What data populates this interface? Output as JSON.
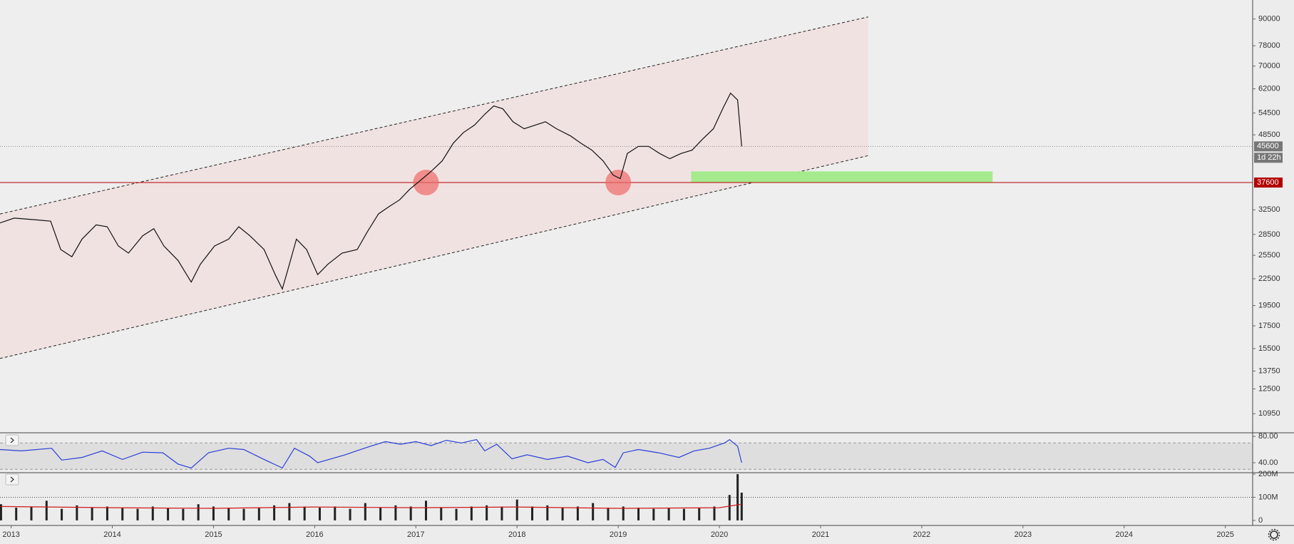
{
  "chart_data": [
    {
      "type": "line",
      "yscale": "log",
      "xlim": [
        2012.89,
        2025.27
      ],
      "xticks": [
        2013,
        2014,
        2015,
        2016,
        2017,
        2018,
        2019,
        2020,
        2021,
        2022,
        2023,
        2024,
        2025
      ],
      "ylim": [
        9890,
        99600
      ],
      "yticks": [
        90000,
        78000,
        70000,
        62000,
        54500,
        48500,
        32500,
        28500,
        25500,
        22500,
        19500,
        17500,
        15500,
        13750,
        12500,
        10950
      ],
      "x": [
        2012.89,
        2013.03,
        2013.25,
        2013.39,
        2013.49,
        2013.6,
        2013.7,
        2013.84,
        2013.95,
        2014.06,
        2014.16,
        2014.3,
        2014.41,
        2014.51,
        2014.65,
        2014.78,
        2014.87,
        2015.01,
        2015.15,
        2015.25,
        2015.36,
        2015.5,
        2015.61,
        2015.68,
        2015.75,
        2015.82,
        2015.92,
        2016.03,
        2016.13,
        2016.27,
        2016.42,
        2016.52,
        2016.63,
        2016.73,
        2016.84,
        2016.94,
        2017.05,
        2017.15,
        2017.26,
        2017.37,
        2017.47,
        2017.58,
        2017.68,
        2017.77,
        2017.86,
        2017.96,
        2018.07,
        2018.18,
        2018.28,
        2018.39,
        2018.53,
        2018.63,
        2018.74,
        2018.85,
        2018.95,
        2019.02,
        2019.09,
        2019.2,
        2019.3,
        2019.41,
        2019.51,
        2019.62,
        2019.73,
        2019.83,
        2019.94,
        2020.04,
        2020.11,
        2020.18,
        2020.22
      ],
      "series": [
        {
          "color": "#111111",
          "values": [
            30300,
            31100,
            30800,
            30600,
            26300,
            25300,
            27800,
            30000,
            29700,
            26800,
            25800,
            28300,
            29400,
            26800,
            24800,
            22100,
            24300,
            26800,
            27800,
            29700,
            28300,
            26300,
            23000,
            21300,
            24300,
            27800,
            26300,
            23000,
            24300,
            25800,
            26300,
            28900,
            31800,
            33000,
            34300,
            36300,
            38100,
            39900,
            42200,
            46400,
            49100,
            51100,
            54100,
            56600,
            55700,
            52000,
            50100,
            51100,
            52000,
            50100,
            48200,
            46400,
            44700,
            42200,
            39100,
            38400,
            43900,
            45600,
            45600,
            43900,
            42700,
            43900,
            44700,
            47300,
            50100,
            56200,
            60600,
            58400,
            45600
          ]
        }
      ],
      "channel": {
        "x": [
          2012.89,
          2021.47
        ],
        "upper": [
          31800,
          91000
        ],
        "lower": [
          14700,
          43400
        ]
      },
      "support_zone": {
        "x": [
          2019.72,
          2022.7
        ],
        "y": [
          37600,
          39900
        ]
      },
      "touches": {
        "x": [
          2017.1,
          2019.0
        ],
        "values": [
          37600,
          37600
        ]
      },
      "last_price": 45600,
      "countdown": "1d 22h",
      "level": 37600
    },
    {
      "type": "line",
      "ylim": [
        24.9,
        85.4
      ],
      "yticks": [
        {
          "value": 80,
          "label": "80.00"
        },
        {
          "value": 40,
          "label": "40.00"
        }
      ],
      "band": [
        30,
        70
      ],
      "x": [
        2012.89,
        2013.1,
        2013.4,
        2013.5,
        2013.7,
        2013.9,
        2014.1,
        2014.3,
        2014.5,
        2014.65,
        2014.78,
        2014.95,
        2015.15,
        2015.3,
        2015.5,
        2015.68,
        2015.8,
        2015.95,
        2016.03,
        2016.3,
        2016.55,
        2016.7,
        2016.85,
        2017.0,
        2017.15,
        2017.3,
        2017.45,
        2017.6,
        2017.68,
        2017.8,
        2017.95,
        2018.1,
        2018.3,
        2018.5,
        2018.7,
        2018.85,
        2018.97,
        2019.05,
        2019.2,
        2019.4,
        2019.6,
        2019.75,
        2019.9,
        2020.05,
        2020.1,
        2020.18,
        2020.22
      ],
      "series": [
        {
          "color": "#2a3fd8",
          "values": [
            60,
            58,
            62,
            44,
            48,
            58,
            45,
            56,
            55,
            38,
            32,
            55,
            62,
            60,
            45,
            32,
            62,
            50,
            40,
            52,
            65,
            72,
            68,
            72,
            66,
            74,
            70,
            75,
            58,
            68,
            46,
            52,
            45,
            50,
            40,
            45,
            33,
            55,
            60,
            55,
            48,
            58,
            62,
            70,
            75,
            65,
            40
          ]
        }
      ]
    },
    {
      "type": "bar",
      "ylim": [
        -21900000,
        206250000
      ],
      "yticks": [
        {
          "value": 200000000,
          "label": "200M"
        },
        {
          "value": 100000000,
          "label": "100M"
        },
        0
      ],
      "x": [
        2012.9,
        2013.05,
        2013.2,
        2013.35,
        2013.5,
        2013.65,
        2013.8,
        2013.95,
        2014.1,
        2014.25,
        2014.4,
        2014.55,
        2014.7,
        2014.85,
        2015.0,
        2015.15,
        2015.3,
        2015.45,
        2015.6,
        2015.75,
        2015.9,
        2016.05,
        2016.2,
        2016.35,
        2016.5,
        2016.65,
        2016.8,
        2016.95,
        2017.1,
        2017.25,
        2017.4,
        2017.55,
        2017.7,
        2017.85,
        2018.0,
        2018.15,
        2018.3,
        2018.45,
        2018.6,
        2018.75,
        2018.9,
        2019.05,
        2019.2,
        2019.35,
        2019.5,
        2019.65,
        2019.8,
        2019.95,
        2020.1,
        2020.18,
        2020.22
      ],
      "values": [
        70000000,
        55000000,
        60000000,
        85000000,
        50000000,
        65000000,
        55000000,
        60000000,
        55000000,
        50000000,
        60000000,
        55000000,
        50000000,
        70000000,
        60000000,
        55000000,
        50000000,
        55000000,
        65000000,
        75000000,
        60000000,
        55000000,
        60000000,
        50000000,
        75000000,
        55000000,
        65000000,
        60000000,
        85000000,
        55000000,
        50000000,
        60000000,
        65000000,
        60000000,
        90000000,
        60000000,
        65000000,
        55000000,
        60000000,
        75000000,
        55000000,
        60000000,
        55000000,
        50000000,
        55000000,
        50000000,
        55000000,
        60000000,
        110000000,
        200000000,
        120000000
      ],
      "color": "#222222",
      "ma": {
        "color": "#d01818",
        "x": [
          2012.9,
          2014.0,
          2015.0,
          2016.0,
          2017.0,
          2018.0,
          2019.0,
          2020.0,
          2020.22
        ],
        "values": [
          60000000,
          55000000,
          52000000,
          58000000,
          55000000,
          58000000,
          52000000,
          55000000,
          70000000
        ]
      }
    }
  ]
}
